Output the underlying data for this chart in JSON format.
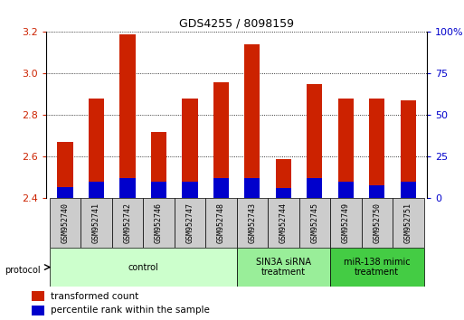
{
  "title": "GDS4255 / 8098159",
  "samples": [
    "GSM952740",
    "GSM952741",
    "GSM952742",
    "GSM952746",
    "GSM952747",
    "GSM952748",
    "GSM952743",
    "GSM952744",
    "GSM952745",
    "GSM952749",
    "GSM952750",
    "GSM952751"
  ],
  "transformed_count": [
    2.67,
    2.88,
    3.19,
    2.72,
    2.88,
    2.96,
    3.14,
    2.59,
    2.95,
    2.88,
    2.88,
    2.87
  ],
  "percentile_rank": [
    7,
    10,
    12,
    10,
    10,
    12,
    12,
    6,
    12,
    10,
    8,
    10
  ],
  "red_color": "#cc2200",
  "blue_color": "#0000cc",
  "ylim_left": [
    2.4,
    3.2
  ],
  "ylim_right": [
    0,
    100
  ],
  "yticks_left": [
    2.4,
    2.6,
    2.8,
    3.0,
    3.2
  ],
  "yticks_right": [
    0,
    25,
    50,
    75,
    100
  ],
  "bar_width": 0.5,
  "groups": [
    {
      "label": "control",
      "start": 0,
      "end": 5,
      "color": "#ccffcc"
    },
    {
      "label": "SIN3A siRNA\ntreatment",
      "start": 6,
      "end": 8,
      "color": "#99ee99"
    },
    {
      "label": "miR-138 mimic\ntreatment",
      "start": 9,
      "end": 11,
      "color": "#44cc44"
    }
  ],
  "protocol_label": "protocol",
  "legend_red": "transformed count",
  "legend_blue": "percentile rank within the sample",
  "label_color_left": "#cc2200",
  "label_color_right": "#0000cc",
  "sample_box_color": "#cccccc",
  "fig_bg": "#ffffff"
}
